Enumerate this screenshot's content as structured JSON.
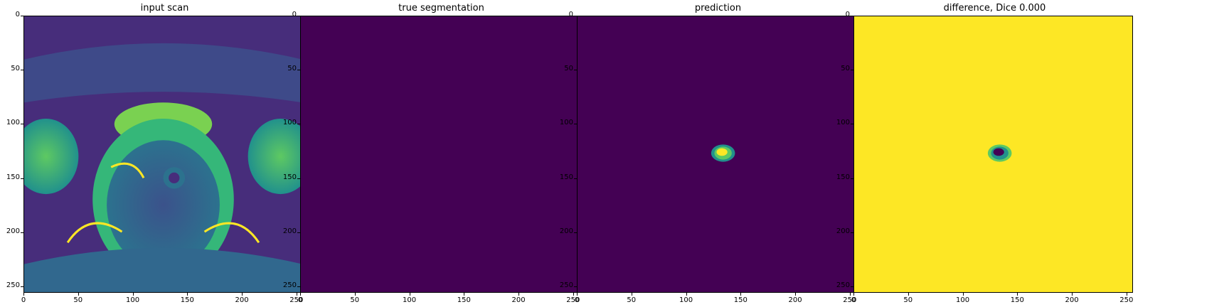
{
  "figure": {
    "colormap": "viridis",
    "colors": {
      "dark": "#440154",
      "bright": "#fde725",
      "teal": "#21918c",
      "green": "#5ec962"
    },
    "axis_ticks": [
      "0",
      "50",
      "100",
      "150",
      "200",
      "250"
    ],
    "axis_extent": [
      0,
      256
    ],
    "panels": [
      {
        "title": "input scan"
      },
      {
        "title": "true segmentation"
      },
      {
        "title": "prediction"
      },
      {
        "title": "difference, Dice 0.000"
      }
    ]
  }
}
